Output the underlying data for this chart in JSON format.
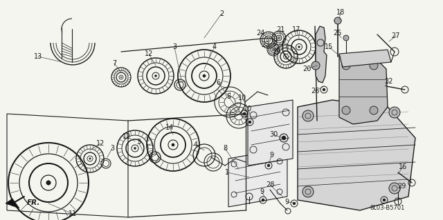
{
  "bg_color": "#f5f5f0",
  "diagram_code": "8L03-B5701",
  "fig_width": 6.4,
  "fig_height": 3.19,
  "dpi": 100,
  "line_color": "#1a1a1a",
  "text_color": "#1a1a1a",
  "label_fontsize": 7.0
}
